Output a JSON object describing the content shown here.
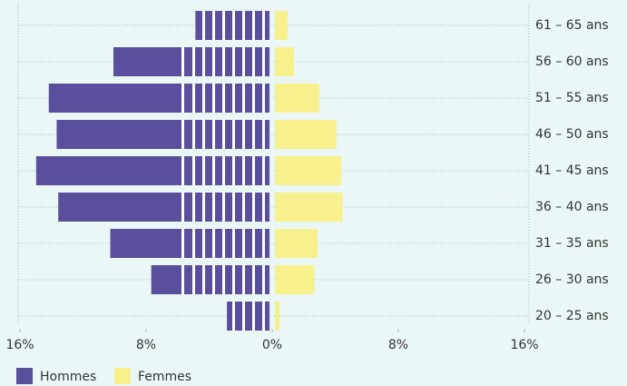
{
  "chart_data": {
    "type": "pyramid",
    "categories": [
      "20 – 25 ans",
      "26 – 30 ans",
      "31 – 35 ans",
      "36 – 40 ans",
      "41 – 45 ans",
      "46 – 50 ans",
      "51 – 55 ans",
      "56 – 60 ans",
      "61 – 65 ans"
    ],
    "series": [
      {
        "name": "Hommes",
        "color": "#5a4f9d",
        "values": [
          2.7,
          7.5,
          10.1,
          13.4,
          14.8,
          13.5,
          14.0,
          9.9,
          4.7
        ]
      },
      {
        "name": "Femmes",
        "color": "#f8f08c",
        "values": [
          0.3,
          2.5,
          2.7,
          4.3,
          4.2,
          3.9,
          2.8,
          1.2,
          0.8
        ]
      }
    ],
    "xlim": [
      -16,
      16
    ],
    "xticks": [
      {
        "value": -16,
        "label": "16%"
      },
      {
        "value": -8,
        "label": "8%"
      },
      {
        "value": 0,
        "label": "0%"
      },
      {
        "value": 8,
        "label": "8%"
      },
      {
        "value": 16,
        "label": "16%"
      }
    ],
    "legend": "bottom-left"
  }
}
